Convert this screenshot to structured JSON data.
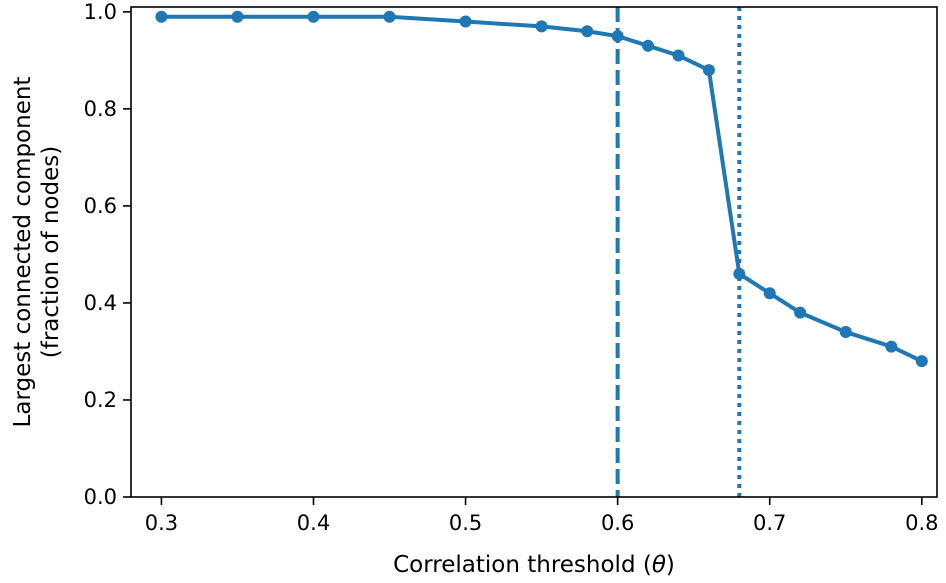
{
  "chart_data": {
    "type": "line",
    "title": "",
    "xlabel": "Correlation threshold (θ)",
    "xlabel_prefix": "Correlation threshold (",
    "xlabel_symbol": "θ",
    "xlabel_suffix": ")",
    "ylabel_line1": "Largest connected component",
    "ylabel_line2": "(fraction of nodes)",
    "xlim": [
      0.28,
      0.81
    ],
    "ylim": [
      0.0,
      1.01
    ],
    "xticks": [
      0.3,
      0.4,
      0.5,
      0.6,
      0.7,
      0.8
    ],
    "xtick_labels": [
      "0.3",
      "0.4",
      "0.5",
      "0.6",
      "0.7",
      "0.8"
    ],
    "yticks": [
      0.0,
      0.2,
      0.4,
      0.6,
      0.8,
      1.0
    ],
    "ytick_labels": [
      "0.0",
      "0.2",
      "0.4",
      "0.6",
      "0.8",
      "1.0"
    ],
    "grid": false,
    "series": [
      {
        "name": "largest connected component",
        "color": "#1f77b4",
        "x": [
          0.3,
          0.35,
          0.4,
          0.45,
          0.5,
          0.55,
          0.58,
          0.6,
          0.62,
          0.64,
          0.66,
          0.68,
          0.7,
          0.72,
          0.75,
          0.78,
          0.8
        ],
        "y": [
          0.99,
          0.99,
          0.99,
          0.99,
          0.98,
          0.97,
          0.96,
          0.95,
          0.93,
          0.91,
          0.88,
          0.46,
          0.42,
          0.38,
          0.34,
          0.31,
          0.28
        ]
      }
    ],
    "vlines": [
      {
        "name": "dashed-threshold",
        "x": 0.6,
        "style": "dashed",
        "color": "#1f77b4"
      },
      {
        "name": "dotted-threshold",
        "x": 0.68,
        "style": "dotted",
        "color": "#1f77b4"
      }
    ]
  }
}
